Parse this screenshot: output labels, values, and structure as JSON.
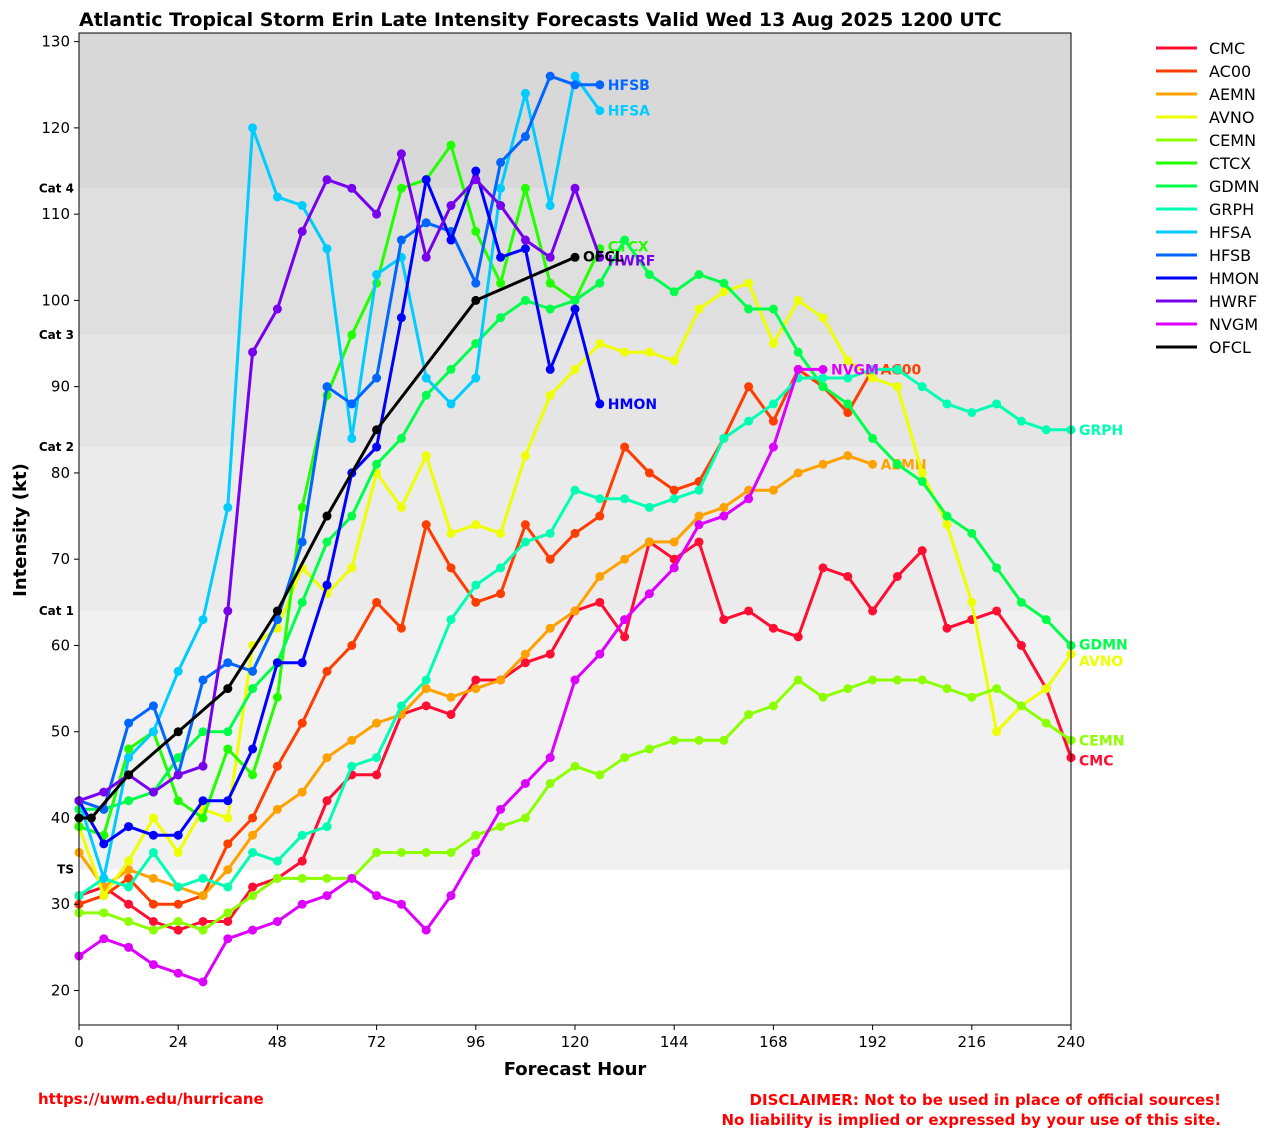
{
  "chart_data": {
    "type": "line",
    "title": "Atlantic Tropical Storm Erin Late Intensity Forecasts Valid Wed 13 Aug 2025 1200 UTC",
    "xlabel": "Forecast Hour",
    "ylabel": "Intensity (kt)",
    "xlim": [
      0,
      240
    ],
    "ylim": [
      16,
      131
    ],
    "xticks": [
      0,
      24,
      48,
      72,
      96,
      120,
      144,
      168,
      192,
      216,
      240
    ],
    "yticks": [
      20,
      30,
      40,
      50,
      60,
      70,
      80,
      90,
      100,
      110,
      120,
      130
    ],
    "grid": false,
    "legend_position": "outside-right",
    "categories": [
      {
        "label": "TS",
        "min": 34,
        "max": 64,
        "color": "#f1f1f1"
      },
      {
        "label": "Cat 1",
        "min": 64,
        "max": 83,
        "color": "#ebebeb"
      },
      {
        "label": "Cat 2",
        "min": 83,
        "max": 96,
        "color": "#e5e5e5"
      },
      {
        "label": "Cat 3",
        "min": 96,
        "max": 113,
        "color": "#dfdfdf"
      },
      {
        "label": "Cat 4",
        "min": 113,
        "max": 131,
        "color": "#d8d8d8"
      }
    ],
    "series": [
      {
        "name": "CMC",
        "color": "#ff0d33",
        "x": [
          0,
          6,
          12,
          18,
          24,
          30,
          36,
          42,
          48,
          54,
          60,
          66,
          72,
          78,
          84,
          90,
          96,
          102,
          108,
          114,
          120,
          126,
          132,
          138,
          144,
          150,
          156,
          162,
          168,
          174,
          180,
          186,
          192,
          198,
          204,
          210,
          216,
          222,
          228,
          234,
          240
        ],
        "y": [
          31,
          32,
          30,
          28,
          27,
          28,
          28,
          32,
          33,
          35,
          42,
          45,
          45,
          52,
          53,
          52,
          56,
          56,
          58,
          59,
          64,
          65,
          61,
          72,
          70,
          72,
          63,
          64,
          62,
          61,
          69,
          68,
          64,
          68,
          71,
          62,
          63,
          64,
          60,
          55,
          47
        ]
      },
      {
        "name": "AC00",
        "color": "#ff3d00",
        "x": [
          0,
          6,
          12,
          18,
          24,
          30,
          36,
          42,
          48,
          54,
          60,
          66,
          72,
          78,
          84,
          90,
          96,
          102,
          108,
          114,
          120,
          126,
          132,
          138,
          144,
          150,
          156,
          162,
          168,
          174,
          180,
          186,
          192
        ],
        "y": [
          30,
          31,
          33,
          30,
          30,
          31,
          37,
          40,
          46,
          51,
          57,
          60,
          65,
          62,
          74,
          69,
          65,
          66,
          74,
          70,
          73,
          75,
          83,
          80,
          78,
          79,
          84,
          90,
          86,
          92,
          90,
          87,
          92
        ]
      },
      {
        "name": "AEMN",
        "color": "#ffa200",
        "x": [
          0,
          6,
          12,
          18,
          24,
          30,
          36,
          42,
          48,
          54,
          60,
          66,
          72,
          78,
          84,
          90,
          96,
          102,
          108,
          114,
          120,
          126,
          132,
          138,
          144,
          150,
          156,
          162,
          168,
          174,
          180,
          186,
          192
        ],
        "y": [
          36,
          32,
          34,
          33,
          32,
          31,
          34,
          38,
          41,
          43,
          47,
          49,
          51,
          52,
          55,
          54,
          55,
          56,
          59,
          62,
          64,
          68,
          70,
          72,
          72,
          75,
          76,
          78,
          78,
          80,
          81,
          82,
          81
        ]
      },
      {
        "name": "AVNO",
        "color": "#eeff00",
        "x": [
          0,
          6,
          12,
          18,
          24,
          30,
          36,
          42,
          48,
          54,
          60,
          66,
          72,
          78,
          84,
          90,
          96,
          102,
          108,
          114,
          120,
          126,
          132,
          138,
          144,
          150,
          156,
          162,
          168,
          174,
          180,
          186,
          192,
          198,
          204,
          210,
          216,
          222,
          228,
          234,
          240
        ],
        "y": [
          39,
          31,
          35,
          40,
          36,
          41,
          40,
          60,
          62,
          69,
          66,
          69,
          80,
          76,
          82,
          73,
          74,
          73,
          82,
          89,
          92,
          95,
          94,
          94,
          93,
          99,
          101,
          102,
          95,
          100,
          98,
          93,
          91,
          90,
          80,
          74,
          65,
          50,
          53,
          55,
          59
        ]
      },
      {
        "name": "CEMN",
        "color": "#8cff00",
        "x": [
          0,
          6,
          12,
          18,
          24,
          30,
          36,
          42,
          48,
          54,
          60,
          66,
          72,
          78,
          84,
          90,
          96,
          102,
          108,
          114,
          120,
          126,
          132,
          138,
          144,
          150,
          156,
          162,
          168,
          174,
          180,
          186,
          192,
          198,
          204,
          210,
          216,
          222,
          228,
          234,
          240
        ],
        "y": [
          29,
          29,
          28,
          27,
          28,
          27,
          29,
          31,
          33,
          33,
          33,
          33,
          36,
          36,
          36,
          36,
          38,
          39,
          40,
          44,
          46,
          45,
          47,
          48,
          49,
          49,
          49,
          52,
          53,
          56,
          54,
          55,
          56,
          56,
          56,
          55,
          54,
          55,
          53,
          51,
          49
        ]
      },
      {
        "name": "CTCX",
        "color": "#22ff00",
        "x": [
          0,
          6,
          12,
          18,
          24,
          30,
          36,
          42,
          48,
          54,
          60,
          66,
          72,
          78,
          84,
          90,
          96,
          102,
          108,
          114,
          120,
          126
        ],
        "y": [
          39,
          38,
          48,
          50,
          42,
          40,
          48,
          45,
          54,
          76,
          89,
          96,
          102,
          113,
          114,
          118,
          108,
          102,
          113,
          102,
          100,
          106
        ]
      },
      {
        "name": "GDMN",
        "color": "#00ff4a",
        "x": [
          0,
          6,
          12,
          18,
          24,
          30,
          36,
          42,
          48,
          54,
          60,
          66,
          72,
          78,
          84,
          90,
          96,
          102,
          108,
          114,
          120,
          126,
          132,
          138,
          144,
          150,
          156,
          162,
          168,
          174,
          180,
          186,
          192,
          198,
          204,
          210,
          216,
          222,
          228,
          234,
          240
        ],
        "y": [
          41,
          41,
          42,
          43,
          47,
          50,
          50,
          55,
          58,
          65,
          72,
          75,
          81,
          84,
          89,
          92,
          95,
          98,
          100,
          99,
          100,
          102,
          107,
          103,
          101,
          103,
          102,
          99,
          99,
          94,
          90,
          88,
          84,
          81,
          79,
          75,
          73,
          69,
          65,
          63,
          60
        ]
      },
      {
        "name": "GRPH",
        "color": "#00ffb3",
        "x": [
          0,
          6,
          12,
          18,
          24,
          30,
          36,
          42,
          48,
          54,
          60,
          66,
          72,
          78,
          84,
          90,
          96,
          102,
          108,
          114,
          120,
          126,
          132,
          138,
          144,
          150,
          156,
          162,
          168,
          174,
          180,
          186,
          192,
          198,
          204,
          210,
          216,
          222,
          228,
          234,
          240
        ],
        "y": [
          31,
          33,
          32,
          36,
          32,
          33,
          32,
          36,
          35,
          38,
          39,
          46,
          47,
          53,
          56,
          63,
          67,
          69,
          72,
          73,
          78,
          77,
          77,
          76,
          77,
          78,
          84,
          86,
          88,
          91,
          91,
          91,
          92,
          92,
          90,
          88,
          87,
          88,
          86,
          85,
          85
        ]
      },
      {
        "name": "HFSA",
        "color": "#00ccff",
        "x": [
          0,
          6,
          12,
          18,
          24,
          30,
          36,
          42,
          48,
          54,
          60,
          66,
          72,
          78,
          84,
          90,
          96,
          102,
          108,
          114,
          120,
          126
        ],
        "y": [
          42,
          33,
          47,
          50,
          57,
          63,
          76,
          120,
          112,
          111,
          106,
          84,
          103,
          105,
          91,
          88,
          91,
          113,
          124,
          111,
          126,
          122
        ]
      },
      {
        "name": "HFSB",
        "color": "#0066ff",
        "x": [
          0,
          6,
          12,
          18,
          24,
          30,
          36,
          42,
          48,
          54,
          60,
          66,
          72,
          78,
          84,
          90,
          96,
          102,
          108,
          114,
          120,
          126
        ],
        "y": [
          42,
          41,
          51,
          53,
          45,
          56,
          58,
          57,
          63,
          72,
          90,
          88,
          91,
          107,
          109,
          108,
          102,
          116,
          119,
          126,
          125,
          125
        ]
      },
      {
        "name": "HMON",
        "color": "#0000ff",
        "x": [
          0,
          6,
          12,
          18,
          24,
          30,
          36,
          42,
          48,
          54,
          60,
          66,
          72,
          78,
          84,
          90,
          96,
          102,
          108,
          114,
          120,
          126
        ],
        "y": [
          42,
          37,
          39,
          38,
          38,
          42,
          42,
          48,
          58,
          58,
          67,
          80,
          83,
          98,
          114,
          107,
          115,
          105,
          106,
          92,
          99,
          88
        ]
      },
      {
        "name": "HWRF",
        "color": "#7700ee",
        "x": [
          0,
          6,
          12,
          18,
          24,
          30,
          36,
          42,
          48,
          54,
          60,
          66,
          72,
          78,
          84,
          90,
          96,
          102,
          108,
          114,
          120,
          126
        ],
        "y": [
          42,
          43,
          45,
          43,
          45,
          46,
          64,
          94,
          99,
          108,
          114,
          113,
          110,
          117,
          105,
          111,
          114,
          111,
          107,
          105,
          113,
          105
        ]
      },
      {
        "name": "NVGM",
        "color": "#dd00ff",
        "x": [
          0,
          6,
          12,
          18,
          24,
          30,
          36,
          42,
          48,
          54,
          60,
          66,
          72,
          78,
          84,
          90,
          96,
          102,
          108,
          114,
          120,
          126,
          132,
          138,
          144,
          150,
          156,
          162,
          168,
          174,
          180
        ],
        "y": [
          24,
          26,
          25,
          23,
          22,
          21,
          26,
          27,
          28,
          30,
          31,
          33,
          31,
          30,
          27,
          31,
          36,
          41,
          44,
          47,
          56,
          59,
          63,
          66,
          69,
          74,
          75,
          77,
          83,
          92,
          92
        ]
      },
      {
        "name": "OFCL",
        "color": "#000000",
        "x": [
          0,
          3,
          12,
          24,
          36,
          48,
          60,
          72,
          96,
          120
        ],
        "y": [
          40,
          40,
          45,
          50,
          55,
          64,
          75,
          85,
          100,
          105
        ]
      }
    ]
  },
  "footer": {
    "url": "https://uwm.edu/hurricane",
    "disclaimer_line1": "DISCLAIMER: Not to be used in place of official sources!",
    "disclaimer_line2": "No liability is implied or expressed by your use of this site."
  }
}
